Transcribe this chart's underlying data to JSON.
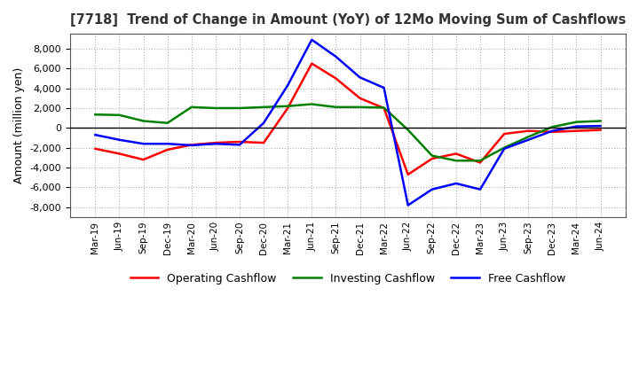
{
  "title": "[7718]  Trend of Change in Amount (YoY) of 12Mo Moving Sum of Cashflows",
  "ylabel": "Amount (million yen)",
  "ylim": [
    -9000,
    9500
  ],
  "yticks": [
    -8000,
    -6000,
    -4000,
    -2000,
    0,
    2000,
    4000,
    6000,
    8000
  ],
  "x_labels": [
    "Mar-19",
    "Jun-19",
    "Sep-19",
    "Dec-19",
    "Mar-20",
    "Jun-20",
    "Sep-20",
    "Dec-20",
    "Mar-21",
    "Jun-21",
    "Sep-21",
    "Dec-21",
    "Mar-22",
    "Jun-22",
    "Sep-22",
    "Dec-22",
    "Mar-23",
    "Jun-23",
    "Sep-23",
    "Dec-23",
    "Mar-24",
    "Jun-24"
  ],
  "operating": [
    -2100,
    -2600,
    -3200,
    -2200,
    -1700,
    -1500,
    -1400,
    -1500,
    2000,
    6500,
    5000,
    3000,
    2000,
    -4700,
    -3100,
    -2600,
    -3500,
    -600,
    -300,
    -400,
    -300,
    -200
  ],
  "investing": [
    1350,
    1300,
    700,
    500,
    2100,
    2000,
    2000,
    2100,
    2200,
    2400,
    2100,
    2100,
    2050,
    -200,
    -2800,
    -3300,
    -3300,
    -2000,
    -900,
    100,
    600,
    700
  ],
  "free": [
    -700,
    -1200,
    -1600,
    -1600,
    -1750,
    -1600,
    -1700,
    500,
    4300,
    8900,
    7200,
    5100,
    4050,
    -7800,
    -6200,
    -5600,
    -6200,
    -2100,
    -1200,
    -300,
    150,
    200
  ],
  "operating_color": "#ff0000",
  "investing_color": "#008000",
  "free_color": "#0000ff",
  "bg_color": "#ffffff",
  "grid_color": "#b0b0b0"
}
